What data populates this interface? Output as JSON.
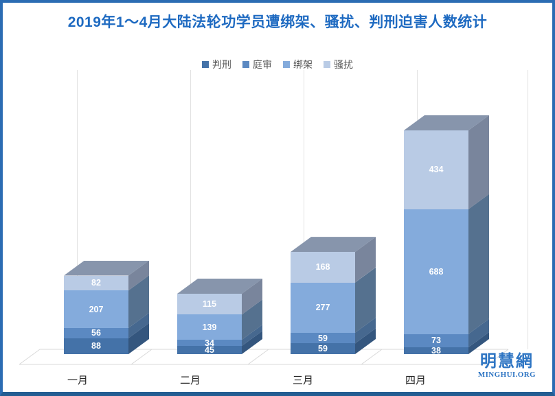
{
  "header": {
    "title": "2019年1～4月大陆法轮功学员遭绑架、骚扰、判刑迫害人数统计",
    "title_color": "#1e6ac1"
  },
  "logo": {
    "name": "明慧網",
    "url_text": "MINGHUI.ORG",
    "color": "#2e75c3"
  },
  "chart_data": {
    "type": "bar",
    "subtype": "3d-stacked-column",
    "title": "2019年1～4月大陆法轮功学员遭绑架、骚扰、判刑迫害人数统计",
    "categories": [
      "一月",
      "二月",
      "三月",
      "四月"
    ],
    "series": [
      {
        "name": "判刑",
        "values": [
          88,
          45,
          59,
          38
        ],
        "color": "#4472a8",
        "side_color": "#34567e"
      },
      {
        "name": "庭审",
        "values": [
          56,
          34,
          59,
          73
        ],
        "color": "#5b89c2",
        "side_color": "#46688f"
      },
      {
        "name": "绑架",
        "values": [
          207,
          139,
          277,
          688
        ],
        "color": "#84abdc",
        "side_color": "#55718f"
      },
      {
        "name": "骚扰",
        "values": [
          82,
          115,
          168,
          434
        ],
        "color": "#b9cbe5",
        "side_color": "#79859c"
      }
    ],
    "category_totals": [
      433,
      333,
      563,
      1233
    ],
    "top_face_color": "#8795ac",
    "value_labels": "white bold number centered on every segment",
    "legend_position": "top-center",
    "legend_text_color": "#595959",
    "grid": "light-gray 3d back-wall vertical lines and floor parallelogram with category diagonals",
    "grid_color": "#dcdcdc",
    "xlabel": "",
    "ylabel": "",
    "axis_ticks": "none (values shown as data labels only)"
  }
}
